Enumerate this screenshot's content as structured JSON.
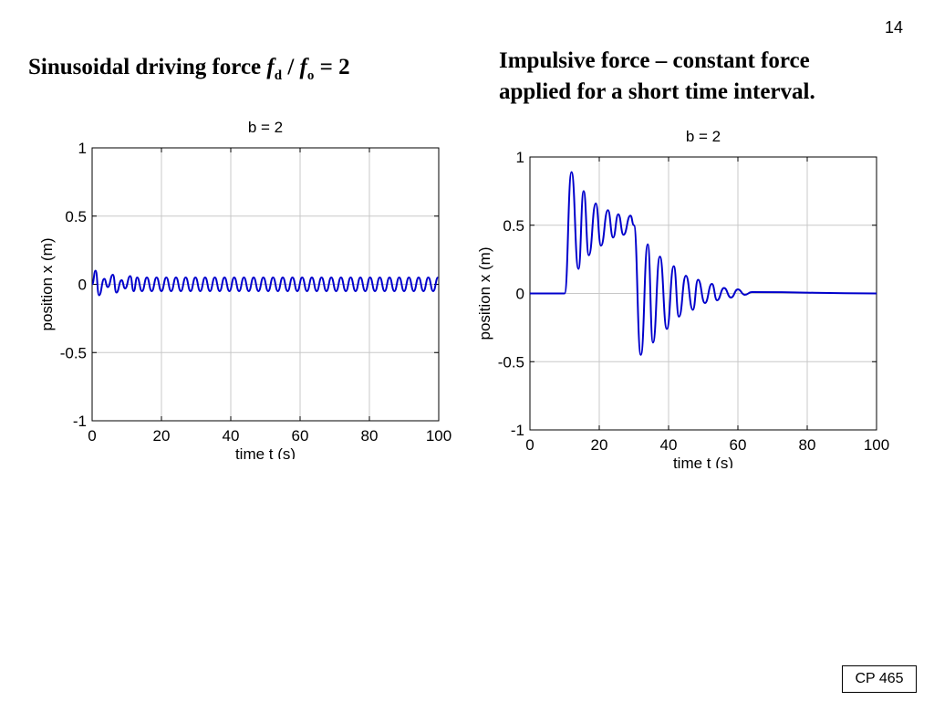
{
  "page_number": "14",
  "footer": "CP 465",
  "left_heading": [
    "Sinusoidal driving force",
    "f",
    "d",
    "/",
    "f",
    "o",
    "= 2"
  ],
  "right_heading": [
    "Impulsive force – constant force",
    "applied for a short time interval."
  ],
  "chart_data": [
    {
      "type": "line",
      "title": "b = 2",
      "xlabel": "time  t  (s)",
      "ylabel": "position  x  (m)",
      "xlim": [
        0,
        100
      ],
      "ylim": [
        -1,
        1
      ],
      "xticks": [
        0,
        20,
        40,
        60,
        80,
        100
      ],
      "yticks": [
        -1,
        -0.5,
        0,
        0.5,
        1
      ],
      "grid": true,
      "color": "#0000cc",
      "x": [
        0,
        1,
        2,
        3.5,
        4.5,
        6,
        7,
        8.5,
        9.5,
        11,
        12,
        13,
        14.4,
        15.8,
        17.2,
        18.6,
        20,
        21.4,
        22.8,
        24.2,
        25.6,
        27,
        28.4,
        29.8,
        31.2,
        32.6,
        34,
        35.4,
        36.8,
        38.2,
        39.6,
        41,
        42.4,
        43.8,
        45.2,
        46.6,
        48,
        49.4,
        50.8,
        52.2,
        53.6,
        55,
        56.4,
        57.8,
        59.2,
        60.6,
        62,
        63.4,
        64.8,
        66.2,
        67.6,
        69,
        70.4,
        71.8,
        73.2,
        74.6,
        76,
        77.4,
        78.8,
        80.2,
        81.6,
        83,
        84.4,
        85.8,
        87.2,
        88.6,
        90,
        91.4,
        92.8,
        94.2,
        95.6,
        97,
        98.4,
        99.8
      ],
      "values": [
        0,
        0.1,
        -0.08,
        0.04,
        -0.02,
        0.07,
        -0.06,
        0.03,
        -0.03,
        0.06,
        -0.05,
        0.05,
        -0.05,
        0.05,
        -0.05,
        0.05,
        -0.05,
        0.05,
        -0.05,
        0.05,
        -0.05,
        0.05,
        -0.05,
        0.05,
        -0.05,
        0.05,
        -0.05,
        0.05,
        -0.05,
        0.05,
        -0.05,
        0.05,
        -0.05,
        0.05,
        -0.05,
        0.05,
        -0.05,
        0.05,
        -0.05,
        0.05,
        -0.05,
        0.05,
        -0.05,
        0.05,
        -0.05,
        0.05,
        -0.05,
        0.05,
        -0.05,
        0.05,
        -0.05,
        0.05,
        -0.05,
        0.05,
        -0.05,
        0.05,
        -0.05,
        0.05,
        -0.05,
        0.05,
        -0.05,
        0.05,
        -0.05,
        0.05,
        -0.05,
        0.05,
        -0.05,
        0.05,
        -0.05,
        0.05,
        -0.05,
        0.05,
        -0.05,
        0.05
      ]
    },
    {
      "type": "line",
      "title": "b = 2",
      "xlabel": "time  t  (s)",
      "ylabel": "position  x  (m)",
      "xlim": [
        0,
        100
      ],
      "ylim": [
        -1,
        1
      ],
      "xticks": [
        0,
        20,
        40,
        60,
        80,
        100
      ],
      "yticks": [
        -1,
        -0.5,
        0,
        0.5,
        1
      ],
      "grid": true,
      "color": "#0000cc",
      "x": [
        0,
        10,
        12,
        14,
        15.5,
        17,
        19,
        20.5,
        22.5,
        24,
        25.5,
        27,
        29,
        30,
        32,
        34,
        35.5,
        37.5,
        39.5,
        41.5,
        43,
        45,
        47,
        48.5,
        50.5,
        52.5,
        54,
        56,
        58,
        60,
        62,
        64,
        100
      ],
      "values": [
        0,
        0,
        0.89,
        0.18,
        0.75,
        0.28,
        0.66,
        0.35,
        0.61,
        0.41,
        0.58,
        0.43,
        0.57,
        0.5,
        -0.45,
        0.36,
        -0.36,
        0.27,
        -0.26,
        0.2,
        -0.17,
        0.13,
        -0.12,
        0.1,
        -0.07,
        0.07,
        -0.05,
        0.04,
        -0.03,
        0.03,
        -0.01,
        0.01,
        0
      ]
    }
  ]
}
